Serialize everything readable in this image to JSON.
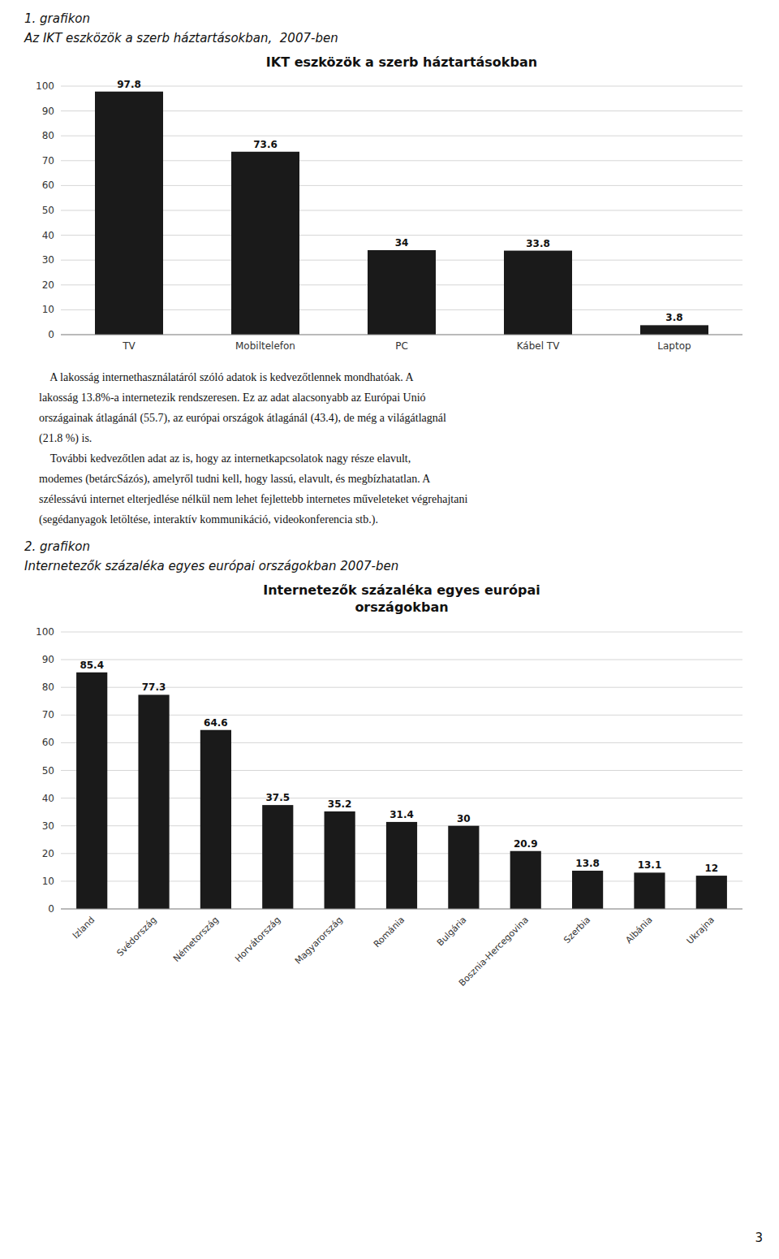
{
  "chart_data": [
    {
      "type": "bar",
      "title": "IKT eszközök a szerb háztartásokban",
      "categories": [
        "TV",
        "Mobiltelefon",
        "PC",
        "Kábel TV",
        "Laptop"
      ],
      "values": [
        97.8,
        73.6,
        34,
        33.8,
        3.8
      ],
      "color": "#1a1a1a",
      "ylim": [
        0,
        100
      ],
      "yticks": [
        0,
        10,
        20,
        30,
        40,
        50,
        60,
        70,
        80,
        90,
        100
      ],
      "grid": true,
      "data_labels": true
    },
    {
      "type": "bar",
      "title": "Internetezők százaléka egyes európai\nországokban",
      "categories": [
        "Izland",
        "Svédország",
        "Németország",
        "Horvátország",
        "Magyarország",
        "Románia",
        "Bulgária",
        "Bosznia-Hercegovina",
        "Szerbia",
        "Albánia",
        "Ukrajna"
      ],
      "values": [
        85.4,
        77.3,
        64.6,
        37.5,
        35.2,
        31.4,
        30,
        20.9,
        13.8,
        13.1,
        12
      ],
      "color": "#1a1a1a",
      "ylim": [
        0,
        100
      ],
      "yticks": [
        0,
        10,
        20,
        30,
        40,
        50,
        60,
        70,
        80,
        90,
        100
      ],
      "grid": true,
      "data_labels": true
    }
  ],
  "page_texts": {
    "heading1": [
      "1. grafikon",
      "Az IKT eszközök a szerb háztartásokban,  2007-ben"
    ],
    "heading2": [
      "2. grafikon",
      "Internetezők százaléka egyes európai országokban 2007-ben"
    ],
    "paragraphs": [
      [
        "    A lakosság internethasználatáról szóló adatok is kedvezőtlennek mondhatóak. A",
        "lakosság 13.8%-a internetezik rendszeresen. Ez az adat alacsonyabb az Európai Unió",
        "országainak átlagánál (55.7), az európai országok átlagánál (43.4), de még a világátlagnál",
        "(21.8 %) is."
      ],
      [
        "    További kedvezőtlen adat az is, hogy az internetkapcsolatok nagy része elavult,",
        "modemes (betárcSázós), amelyről tudni kell, hogy lassú, elavult, és megbízhatatlan. A",
        "szélessávú internet elterjedlése nélkül nem lehet fejlettebb internetes műveleteket végrehajtani",
        "(segédanyagok letöltése, interaktív kommunikáció, videokonferencia stb.)."
      ]
    ],
    "page_number": "3"
  }
}
